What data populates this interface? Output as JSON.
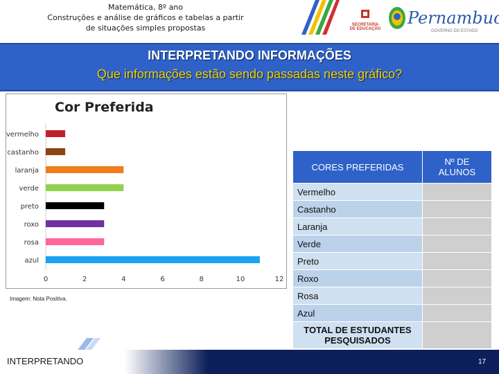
{
  "header": {
    "line1": "Matemática, 8º ano",
    "line2": "Construções e análise de gráficos e tabelas a partir",
    "line3": "de situações simples propostas",
    "seal_line1": "SECRETARIA",
    "seal_line2": "DE EDUCAÇÃO",
    "brand": "Pernambuco",
    "brand_sub": "GOVERNO DO ESTADO"
  },
  "banner": {
    "title": "INTERPRETANDO INFORMAÇÕES",
    "subtitle": "Que informações estão sendo passadas neste gráfico?"
  },
  "chart_data": {
    "type": "bar",
    "orientation": "horizontal",
    "title": "Cor Preferida",
    "categories": [
      "vermelho",
      "castanho",
      "laranja",
      "verde",
      "preto",
      "roxo",
      "rosa",
      "azul"
    ],
    "values": [
      1,
      1,
      4,
      4,
      3,
      3,
      3,
      11
    ],
    "colors": [
      "#c0202a",
      "#8b4513",
      "#f07d1a",
      "#92d050",
      "#000000",
      "#7030a0",
      "#ff6699",
      "#1aa3f0"
    ],
    "xlim": [
      0,
      12
    ],
    "xticks": [
      "0",
      "2",
      "4",
      "6",
      "8",
      "10",
      "12"
    ],
    "grid": false
  },
  "image_credit": "Imagem: Nota Positiva.",
  "table": {
    "header_col1": "CORES PREFERIDAS",
    "header_col2": "Nº DE ALUNOS",
    "rows": [
      "Vermelho",
      "Castanho",
      "Laranja",
      "Verde",
      "Preto",
      "Roxo",
      "Rosa",
      "Azul"
    ],
    "total_label": "TOTAL DE ESTUDANTES PESQUISADOS"
  },
  "footer": {
    "label": "INTERPRETANDO",
    "page": "17"
  }
}
